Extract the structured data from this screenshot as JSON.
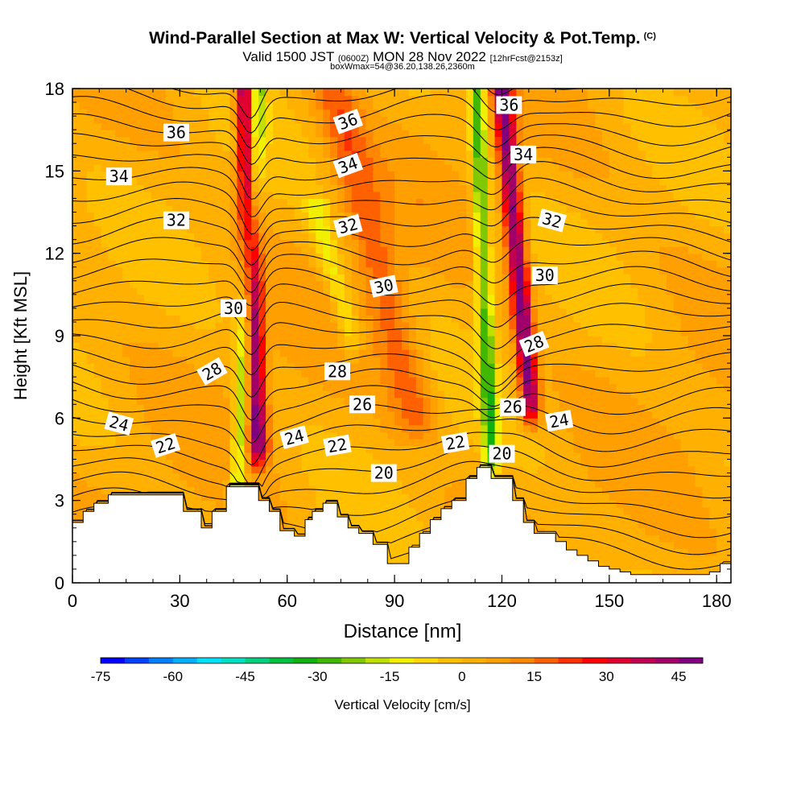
{
  "header": {
    "title": "Wind-Parallel Section at Max W: Vertical Velocity & Pot.Temp.",
    "copyright": "(C)",
    "valid_prefix": "Valid 1500 JST",
    "valid_utc": "(0600Z)",
    "valid_date": "MON 28 Nov 2022",
    "forecast": "[12hrFcst@2153z]",
    "box_info": "boxWmax=54@36.20,138.26,2360m"
  },
  "chart_data": {
    "type": "heatmap",
    "xlabel": "Distance [nm]",
    "ylabel": "Height [Kft MSL]",
    "xlim": [
      0,
      184
    ],
    "ylim": [
      0,
      18
    ],
    "xticks": [
      0,
      30,
      60,
      90,
      120,
      150,
      180
    ],
    "yticks": [
      0,
      3,
      6,
      9,
      12,
      15,
      18
    ],
    "field": "Vertical Velocity",
    "contour_field": "Potential Temperature (C)",
    "colorbar": {
      "label": "Vertical Velocity [cm/s]",
      "min": -75,
      "max": 50,
      "step": 5,
      "tick_labels": [
        -75,
        -60,
        -45,
        -30,
        -15,
        0,
        15,
        30,
        45
      ],
      "colors": [
        "#0000ff",
        "#0040ff",
        "#0080ff",
        "#00b0ff",
        "#00e0ff",
        "#00e0c0",
        "#00d080",
        "#00c040",
        "#10b010",
        "#40b800",
        "#80c800",
        "#c0e000",
        "#f0f000",
        "#ffd800",
        "#ffc000",
        "#ffb000",
        "#ffa000",
        "#ff8800",
        "#ff6000",
        "#ff3000",
        "#ff0000",
        "#e00030",
        "#c00050",
        "#a00068",
        "#800080"
      ]
    },
    "terrain_profile": {
      "x": [
        0,
        3,
        3,
        6,
        6,
        10,
        10,
        31,
        31,
        33,
        33,
        36,
        36,
        39,
        39,
        41,
        41,
        43,
        43,
        52,
        52,
        55,
        55,
        58,
        58,
        62,
        62,
        65,
        65,
        67,
        67,
        70,
        70,
        74,
        74,
        77,
        77,
        80,
        80,
        84,
        84,
        88,
        88,
        91,
        91,
        94,
        94,
        97,
        97,
        100,
        100,
        103,
        103,
        106,
        106,
        110,
        110,
        113,
        113,
        117,
        117,
        123,
        123,
        126,
        126,
        129,
        129,
        132,
        132,
        135,
        135,
        138,
        138,
        141,
        141,
        144,
        144,
        147,
        147,
        150,
        150,
        153,
        153,
        156,
        156,
        160,
        160,
        178,
        178,
        181,
        181,
        184
      ],
      "y": [
        2.2,
        2.2,
        2.6,
        2.6,
        2.9,
        2.9,
        3.2,
        3.2,
        2.6,
        2.6,
        2.6,
        2.6,
        2.0,
        2.0,
        2.6,
        2.6,
        2.6,
        2.6,
        3.5,
        3.5,
        3.0,
        3.0,
        2.6,
        2.6,
        1.9,
        1.9,
        1.7,
        1.7,
        2.3,
        2.3,
        2.6,
        2.6,
        2.9,
        2.9,
        2.4,
        2.4,
        2.0,
        2.0,
        1.8,
        1.8,
        1.4,
        1.4,
        0.7,
        0.7,
        0.7,
        0.7,
        1.3,
        1.3,
        1.8,
        1.8,
        2.3,
        2.3,
        2.7,
        2.7,
        3.0,
        3.0,
        3.8,
        3.8,
        4.2,
        4.2,
        3.8,
        3.8,
        3.0,
        3.0,
        2.2,
        2.2,
        1.8,
        1.8,
        1.8,
        1.8,
        1.5,
        1.5,
        1.2,
        1.2,
        1.0,
        1.0,
        0.8,
        0.8,
        0.6,
        0.6,
        0.5,
        0.5,
        0.4,
        0.4,
        0.3,
        0.3,
        0.3,
        0.3,
        0.4,
        0.4,
        0.7,
        0.7
      ]
    },
    "updraft_bands": [
      {
        "x_top": 48,
        "x_bottom": 52,
        "y_from": 5.0,
        "y_to": 18,
        "peak": 45
      },
      {
        "x_top": 120,
        "x_bottom": 128,
        "y_from": 6.5,
        "y_to": 18,
        "peak": 45
      },
      {
        "x_top": 73,
        "x_bottom": 96,
        "y_from": 6.0,
        "y_to": 18,
        "peak": 15
      }
    ],
    "downdraft_bands": [
      {
        "x_top": 52,
        "x_bottom": 46,
        "y_from": 3.5,
        "y_to": 18,
        "peak": -25
      },
      {
        "x_top": 113,
        "x_bottom": 117,
        "y_from": 4.5,
        "y_to": 18,
        "peak": -30
      },
      {
        "x_top": 68,
        "x_bottom": 78,
        "y_from": 9.0,
        "y_to": 13.5,
        "peak": -15
      }
    ],
    "contour_labels": [
      {
        "text": "36",
        "x": 29,
        "y": 16.4,
        "rot": 0
      },
      {
        "text": "36",
        "x": 77,
        "y": 16.8,
        "rot": -20
      },
      {
        "text": "36",
        "x": 122,
        "y": 17.4,
        "rot": 0
      },
      {
        "text": "34",
        "x": 13,
        "y": 14.8,
        "rot": 0
      },
      {
        "text": "34",
        "x": 77,
        "y": 15.2,
        "rot": -20
      },
      {
        "text": "34",
        "x": 126,
        "y": 15.6,
        "rot": 0
      },
      {
        "text": "32",
        "x": 29,
        "y": 13.2,
        "rot": 0
      },
      {
        "text": "32",
        "x": 77,
        "y": 13.0,
        "rot": -15
      },
      {
        "text": "32",
        "x": 134,
        "y": 13.2,
        "rot": 15
      },
      {
        "text": "30",
        "x": 45,
        "y": 10.0,
        "rot": 0
      },
      {
        "text": "30",
        "x": 87,
        "y": 10.8,
        "rot": -12
      },
      {
        "text": "30",
        "x": 132,
        "y": 11.2,
        "rot": 0
      },
      {
        "text": "28",
        "x": 39,
        "y": 7.7,
        "rot": -30
      },
      {
        "text": "28",
        "x": 74,
        "y": 7.7,
        "rot": 0
      },
      {
        "text": "28",
        "x": 129,
        "y": 8.7,
        "rot": -22
      },
      {
        "text": "26",
        "x": 81,
        "y": 6.5,
        "rot": 0
      },
      {
        "text": "26",
        "x": 123,
        "y": 6.4,
        "rot": 0
      },
      {
        "text": "24",
        "x": 13,
        "y": 5.8,
        "rot": 15
      },
      {
        "text": "24",
        "x": 62,
        "y": 5.3,
        "rot": -15
      },
      {
        "text": "24",
        "x": 136,
        "y": 5.9,
        "rot": -10
      },
      {
        "text": "22",
        "x": 26,
        "y": 5.0,
        "rot": -18
      },
      {
        "text": "22",
        "x": 74,
        "y": 5.0,
        "rot": -10
      },
      {
        "text": "22",
        "x": 107,
        "y": 5.1,
        "rot": -10
      },
      {
        "text": "20",
        "x": 87,
        "y": 4.0,
        "rot": 0
      },
      {
        "text": "20",
        "x": 120,
        "y": 4.7,
        "rot": 0
      }
    ]
  }
}
